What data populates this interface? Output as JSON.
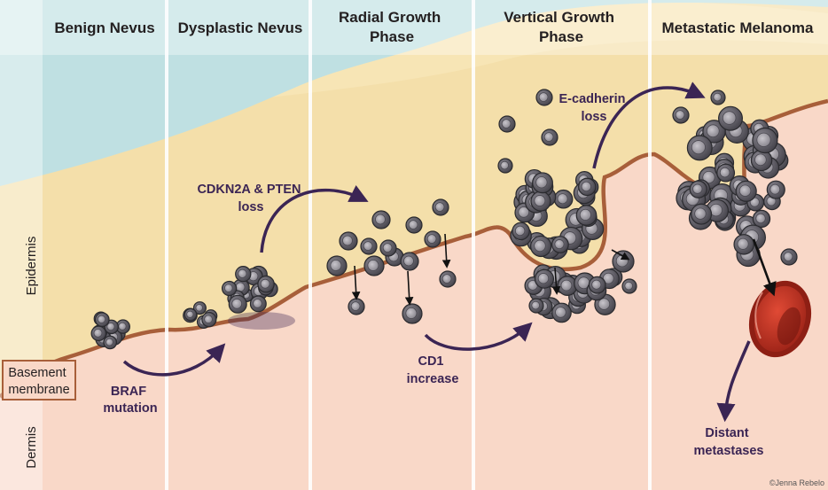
{
  "stages": [
    {
      "id": "benign-nevus",
      "lines": [
        "Benign Nevus"
      ]
    },
    {
      "id": "dysplastic-nevus",
      "lines": [
        "Dysplastic Nevus"
      ]
    },
    {
      "id": "radial-growth-phase",
      "lines": [
        "Radial Growth",
        "Phase"
      ]
    },
    {
      "id": "vertical-growth-phase",
      "lines": [
        "Vertical Growth",
        "Phase"
      ]
    },
    {
      "id": "metastatic-melanoma",
      "lines": [
        "Metastatic Melanoma"
      ]
    }
  ],
  "annotations": [
    {
      "id": "braf-mutation",
      "lines": [
        "BRAF",
        "mutation"
      ]
    },
    {
      "id": "cdkn2a-pten-loss",
      "lines": [
        "CDKN2A & PTEN",
        "loss"
      ]
    },
    {
      "id": "cd1-increase",
      "lines": [
        "CD1",
        "increase"
      ]
    },
    {
      "id": "e-cadherin-loss",
      "lines": [
        "E-cadherin",
        "loss"
      ]
    },
    {
      "id": "distant-metastases",
      "lines": [
        "Distant",
        "metastases"
      ]
    }
  ],
  "layers": {
    "epidermis": "Epidermis",
    "dermis": "Dermis",
    "basement_membrane": [
      "Basement",
      "membrane"
    ]
  },
  "credit": "©Jenna Rebelo",
  "colors": {
    "sky": "#bfe0e2",
    "epidermis": "#f4dfaa",
    "epidermis_light": "#f7e6b8",
    "dermis": "#f9d8c8",
    "membrane": "#a85f3a",
    "arrow": "#3b2554",
    "cell": "#5b5860",
    "cell_edge": "#2a2a2e",
    "vessel": "#c0392b"
  }
}
